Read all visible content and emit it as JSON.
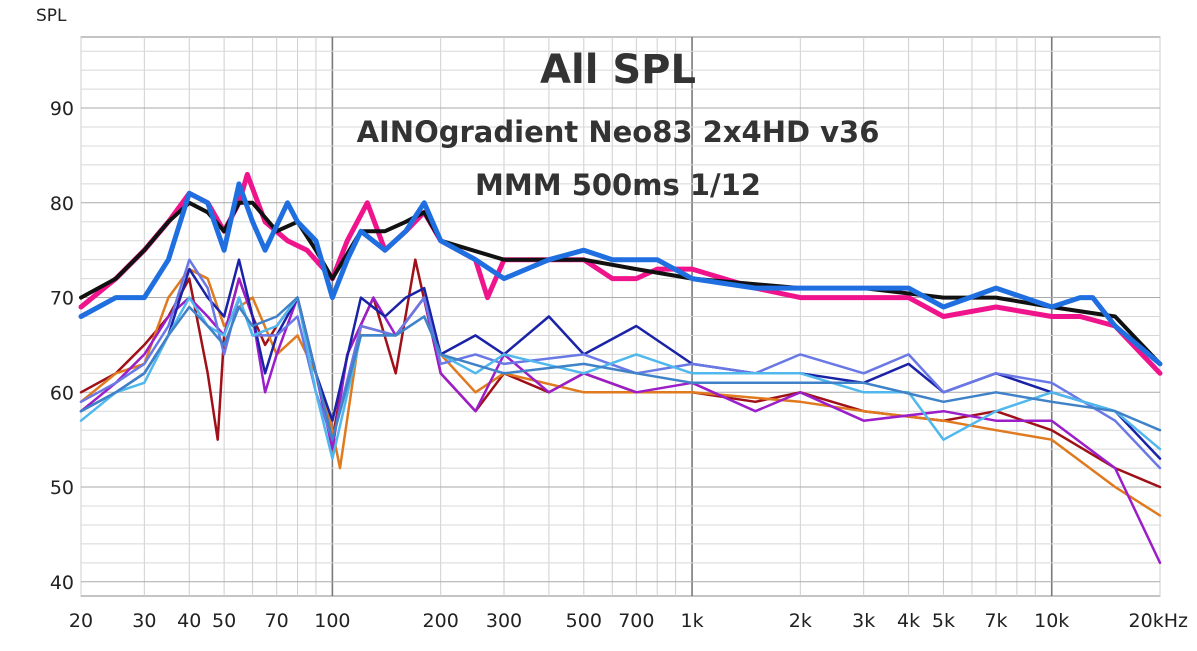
{
  "chart_data": {
    "type": "line",
    "title_lines": [
      "All SPL",
      "AINOgradient Neo83 2x4HD v36",
      "MMM 500ms 1/12"
    ],
    "ylabel": "SPL",
    "xlabel": "",
    "x_scale": "log",
    "xlim": [
      20,
      20000
    ],
    "ylim": [
      38.5,
      97.5
    ],
    "y_ticks": [
      {
        "v": 40,
        "label": "40"
      },
      {
        "v": 50,
        "label": "50"
      },
      {
        "v": 60,
        "label": "60"
      },
      {
        "v": 70,
        "label": "70"
      },
      {
        "v": 80,
        "label": "80"
      },
      {
        "v": 90,
        "label": "90"
      }
    ],
    "x_ticks": [
      {
        "v": 20,
        "label": "20"
      },
      {
        "v": 30,
        "label": "30"
      },
      {
        "v": 40,
        "label": "40"
      },
      {
        "v": 50,
        "label": "50"
      },
      {
        "v": 70,
        "label": "70"
      },
      {
        "v": 100,
        "label": "100"
      },
      {
        "v": 200,
        "label": "200"
      },
      {
        "v": 300,
        "label": "300"
      },
      {
        "v": 500,
        "label": "500"
      },
      {
        "v": 700,
        "label": "700"
      },
      {
        "v": 1000,
        "label": "1k"
      },
      {
        "v": 2000,
        "label": "2k"
      },
      {
        "v": 3000,
        "label": "3k"
      },
      {
        "v": 4000,
        "label": "4k"
      },
      {
        "v": 5000,
        "label": "5k"
      },
      {
        "v": 7000,
        "label": "7k"
      },
      {
        "v": 10000,
        "label": "10k"
      },
      {
        "v": 20000,
        "label": "20kHz"
      }
    ],
    "grid": true,
    "legend": "none",
    "series": [
      {
        "color": "#f0148c",
        "width": 5,
        "x": [
          20,
          25,
          30,
          35,
          40,
          45,
          50,
          55,
          58,
          65,
          75,
          85,
          100,
          110,
          125,
          140,
          160,
          180,
          200,
          250,
          270,
          300,
          400,
          500,
          600,
          700,
          800,
          1000,
          1500,
          2000,
          3000,
          4000,
          5000,
          7000,
          10000,
          12000,
          15000,
          20000
        ],
        "y": [
          69,
          72,
          75,
          78,
          81,
          80,
          77,
          80,
          83,
          78,
          76,
          75,
          72,
          76,
          80,
          75,
          77,
          79,
          76,
          74,
          70,
          74,
          74,
          74,
          72,
          72,
          73,
          73,
          71,
          70,
          70,
          70,
          68,
          69,
          68,
          68,
          67,
          62
        ]
      },
      {
        "color": "#111111",
        "width": 4,
        "x": [
          20,
          25,
          30,
          35,
          40,
          45,
          50,
          55,
          60,
          70,
          80,
          90,
          100,
          120,
          140,
          160,
          180,
          200,
          300,
          500,
          700,
          1000,
          2000,
          3000,
          5000,
          7000,
          10000,
          15000,
          20000
        ],
        "y": [
          70,
          72,
          75,
          78,
          80,
          79,
          77,
          80,
          80,
          77,
          78,
          75,
          72,
          77,
          77,
          78,
          79,
          76,
          74,
          74,
          73,
          72,
          71,
          71,
          70,
          70,
          69,
          68,
          63
        ]
      },
      {
        "color": "#1f6fe0",
        "width": 5,
        "x": [
          20,
          25,
          30,
          35,
          40,
          45,
          50,
          55,
          60,
          65,
          75,
          80,
          90,
          100,
          110,
          120,
          140,
          160,
          180,
          200,
          250,
          300,
          400,
          500,
          600,
          700,
          800,
          1000,
          1500,
          2000,
          3000,
          4000,
          5000,
          7000,
          10000,
          12000,
          13000,
          15000,
          20000
        ],
        "y": [
          68,
          70,
          70,
          74,
          81,
          80,
          75,
          82,
          78,
          75,
          80,
          78,
          76,
          70,
          74,
          77,
          75,
          77,
          80,
          76,
          74,
          72,
          74,
          75,
          74,
          74,
          74,
          72,
          71,
          71,
          71,
          71,
          69,
          71,
          69,
          70,
          70,
          67,
          63
        ]
      },
      {
        "color": "#a01018",
        "width": 2.5,
        "x": [
          20,
          25,
          30,
          35,
          40,
          45,
          48,
          50,
          55,
          60,
          65,
          70,
          80,
          90,
          100,
          110,
          130,
          150,
          170,
          200,
          250,
          300,
          400,
          500,
          700,
          1000,
          1500,
          2000,
          3000,
          5000,
          7000,
          10000,
          15000,
          20000
        ],
        "y": [
          60,
          62,
          65,
          68,
          72,
          62,
          55,
          66,
          72,
          68,
          65,
          67,
          70,
          62,
          55,
          64,
          70,
          62,
          74,
          62,
          58,
          62,
          60,
          62,
          60,
          60,
          59,
          60,
          58,
          57,
          58,
          56,
          52,
          50
        ]
      },
      {
        "color": "#e07a1e",
        "width": 2.5,
        "x": [
          20,
          25,
          30,
          35,
          40,
          45,
          50,
          55,
          60,
          70,
          80,
          90,
          100,
          105,
          120,
          150,
          180,
          200,
          250,
          300,
          500,
          700,
          1000,
          2000,
          3000,
          5000,
          7000,
          10000,
          15000,
          20000
        ],
        "y": [
          59,
          62,
          63,
          70,
          73,
          72,
          67,
          69,
          70,
          64,
          66,
          62,
          56,
          52,
          67,
          66,
          70,
          64,
          60,
          62,
          60,
          60,
          60,
          59,
          58,
          57,
          56,
          55,
          50,
          47
        ]
      },
      {
        "color": "#9c1ec8",
        "width": 2.5,
        "x": [
          20,
          25,
          30,
          35,
          40,
          45,
          50,
          55,
          60,
          65,
          70,
          80,
          90,
          100,
          110,
          130,
          150,
          180,
          200,
          250,
          300,
          400,
          500,
          700,
          1000,
          1500,
          2000,
          3000,
          5000,
          7000,
          10000,
          15000,
          20000
        ],
        "y": [
          58,
          61,
          64,
          68,
          70,
          68,
          66,
          72,
          68,
          60,
          64,
          70,
          62,
          54,
          64,
          70,
          66,
          70,
          62,
          58,
          64,
          60,
          62,
          60,
          61,
          58,
          60,
          57,
          58,
          57,
          57,
          52,
          42
        ]
      },
      {
        "color": "#1a22a8",
        "width": 2.5,
        "x": [
          20,
          25,
          30,
          35,
          40,
          45,
          50,
          55,
          60,
          65,
          70,
          80,
          90,
          100,
          120,
          140,
          160,
          180,
          200,
          250,
          300,
          400,
          500,
          700,
          1000,
          1500,
          2000,
          3000,
          4000,
          5000,
          7000,
          10000,
          15000,
          20000
        ],
        "y": [
          58,
          60,
          62,
          66,
          73,
          70,
          68,
          74,
          68,
          62,
          66,
          70,
          62,
          57,
          70,
          68,
          70,
          71,
          64,
          66,
          64,
          68,
          64,
          67,
          63,
          62,
          62,
          61,
          63,
          60,
          62,
          60,
          58,
          53
        ]
      },
      {
        "color": "#6a78e6",
        "width": 2.5,
        "x": [
          20,
          25,
          30,
          35,
          40,
          45,
          50,
          55,
          60,
          70,
          80,
          90,
          100,
          120,
          150,
          180,
          200,
          250,
          300,
          500,
          700,
          1000,
          1500,
          2000,
          3000,
          4000,
          5000,
          7000,
          10000,
          15000,
          20000
        ],
        "y": [
          59,
          61,
          63,
          67,
          74,
          71,
          64,
          70,
          66,
          66,
          68,
          60,
          55,
          67,
          66,
          70,
          63,
          64,
          63,
          64,
          62,
          63,
          62,
          64,
          62,
          64,
          60,
          62,
          61,
          57,
          52
        ]
      },
      {
        "color": "#50b8ec",
        "width": 2.5,
        "x": [
          20,
          25,
          30,
          35,
          40,
          45,
          50,
          55,
          60,
          70,
          80,
          90,
          100,
          120,
          150,
          180,
          200,
          250,
          300,
          500,
          700,
          1000,
          2000,
          3000,
          4000,
          5000,
          7000,
          10000,
          15000,
          20000
        ],
        "y": [
          57,
          60,
          61,
          66,
          70,
          67,
          66,
          70,
          66,
          67,
          70,
          60,
          53,
          66,
          66,
          68,
          64,
          62,
          64,
          62,
          64,
          62,
          62,
          60,
          60,
          55,
          58,
          60,
          58,
          54
        ]
      },
      {
        "color": "#3f82c8",
        "width": 2.5,
        "x": [
          20,
          25,
          30,
          35,
          40,
          45,
          50,
          55,
          60,
          70,
          80,
          90,
          100,
          120,
          150,
          180,
          200,
          300,
          500,
          700,
          1000,
          2000,
          3000,
          5000,
          7000,
          10000,
          15000,
          20000
        ],
        "y": [
          58,
          60,
          62,
          66,
          69,
          67,
          65,
          69,
          67,
          68,
          70,
          62,
          55,
          66,
          66,
          68,
          64,
          62,
          63,
          62,
          61,
          61,
          61,
          59,
          60,
          59,
          58,
          56
        ]
      }
    ]
  }
}
